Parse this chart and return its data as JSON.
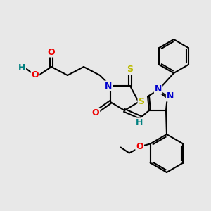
{
  "bg_color": "#e8e8e8",
  "atom_colors": {
    "C": "#000000",
    "N": "#0000cc",
    "O": "#ee0000",
    "S": "#bbbb00",
    "H": "#008080"
  },
  "figsize": [
    3.0,
    3.0
  ],
  "dpi": 100
}
